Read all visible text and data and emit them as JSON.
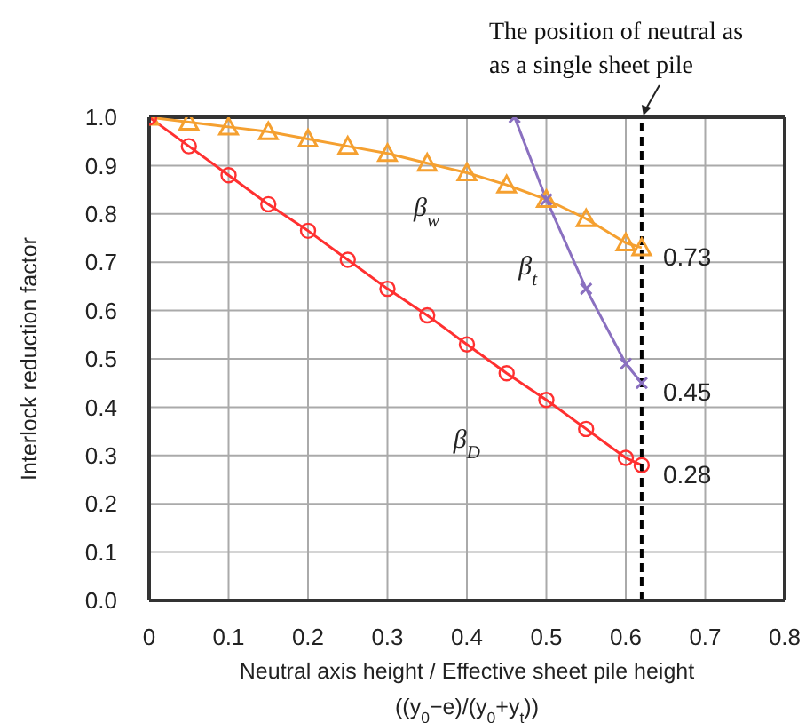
{
  "chart_data": {
    "type": "line",
    "xlabel": "Neutral axis height / Effective sheet pile height\n((y$_{0}$−e)/(y$_{0}$+y$_{t}$))",
    "ylabel": "Interlock reduction factor",
    "series": [
      {
        "name": "β$_{w}$",
        "color": "#f5a030",
        "marker": "triangle",
        "x": [
          0,
          0.05,
          0.1,
          0.15,
          0.2,
          0.25,
          0.3,
          0.35,
          0.4,
          0.45,
          0.5,
          0.55,
          0.6,
          0.62
        ],
        "values": [
          1.0,
          0.99,
          0.98,
          0.97,
          0.955,
          0.94,
          0.925,
          0.905,
          0.885,
          0.86,
          0.83,
          0.79,
          0.74,
          0.73
        ],
        "value_labels": [
          null,
          null,
          null,
          null,
          null,
          null,
          null,
          null,
          null,
          null,
          null,
          null,
          null,
          "0.73"
        ]
      },
      {
        "name": "β$_{t}$",
        "color": "#8a70c0",
        "marker": "cross",
        "x": [
          0.46,
          0.5,
          0.55,
          0.6,
          0.62
        ],
        "values": [
          1.0,
          0.83,
          0.645,
          0.49,
          0.45
        ],
        "value_labels": [
          null,
          null,
          null,
          null,
          "0.45"
        ]
      },
      {
        "name": "β$_{D}$",
        "color": "#ff3030",
        "marker": "circle",
        "x": [
          0,
          0.05,
          0.1,
          0.15,
          0.2,
          0.25,
          0.3,
          0.35,
          0.4,
          0.45,
          0.5,
          0.55,
          0.6,
          0.62
        ],
        "values": [
          1.0,
          0.94,
          0.88,
          0.82,
          0.765,
          0.705,
          0.645,
          0.59,
          0.53,
          0.47,
          0.415,
          0.355,
          0.295,
          0.28
        ],
        "value_labels": [
          null,
          null,
          null,
          null,
          null,
          null,
          null,
          null,
          null,
          null,
          null,
          null,
          null,
          "0.28"
        ]
      }
    ],
    "xlim": [
      0,
      0.8
    ],
    "xticks": [
      0,
      0.1,
      0.2,
      0.3,
      0.4,
      0.5,
      0.6,
      0.7,
      0.8
    ],
    "ylim": [
      0,
      1.0
    ],
    "yticks": [
      {
        "value": 0,
        "label": "0.0"
      },
      0.1,
      0.2,
      0.3,
      0.4,
      0.5,
      0.6,
      0.7,
      0.8,
      0.9,
      {
        "value": 1.0,
        "label": "1.0"
      }
    ],
    "ref_lines": [
      {
        "axis": "x",
        "value": 0.62,
        "label": "The position of neutral as\nas a single sheet pile",
        "color": "#000000",
        "line_style": "dashed"
      }
    ],
    "grid": true,
    "legend": false,
    "line_style": "solid"
  }
}
